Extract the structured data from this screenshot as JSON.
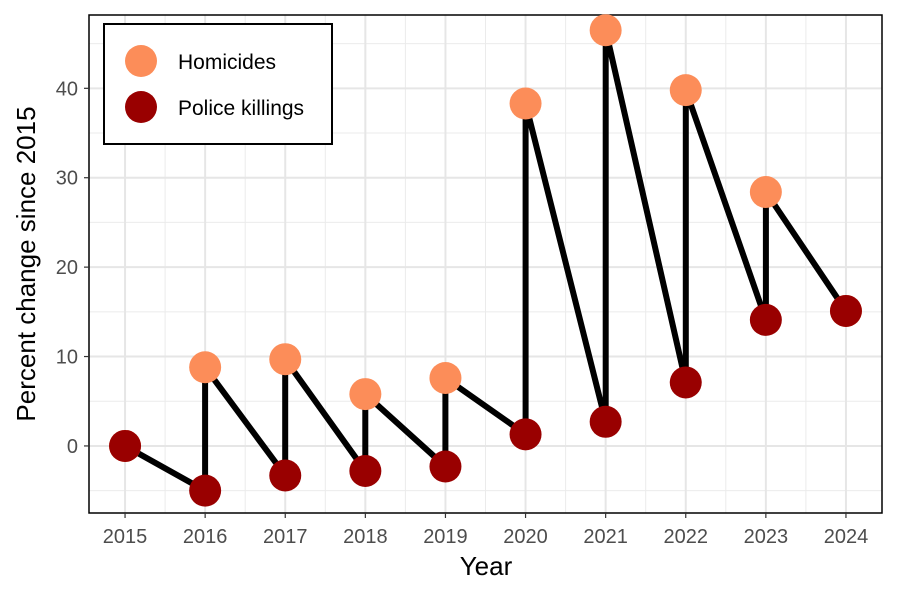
{
  "chart_data": {
    "type": "scatter",
    "xlabel": "Year",
    "ylabel": "Percent change since 2015",
    "xlim": [
      2014.55,
      2024.45
    ],
    "ylim": [
      -7.5,
      48.2
    ],
    "x_ticks": [
      "2015",
      "2016",
      "2017",
      "2018",
      "2019",
      "2020",
      "2021",
      "2022",
      "2023",
      "2024"
    ],
    "y_ticks": [
      "0",
      "10",
      "20",
      "30",
      "40"
    ],
    "grid": true,
    "legend_position": "top-left",
    "series": [
      {
        "name": "Homicides",
        "color": "#FC8D59",
        "x": [
          2015,
          2016,
          2017,
          2018,
          2019,
          2020,
          2021,
          2022,
          2023,
          2024
        ],
        "values": [
          0,
          8.8,
          9.7,
          5.8,
          7.6,
          38.3,
          46.5,
          39.8,
          28.4,
          15.1
        ]
      },
      {
        "name": "Police killings",
        "color": "#990000",
        "x": [
          2015,
          2016,
          2017,
          2018,
          2019,
          2020,
          2021,
          2022,
          2023,
          2024
        ],
        "values": [
          0,
          -5.0,
          -3.3,
          -2.8,
          -2.3,
          1.3,
          2.7,
          7.1,
          14.1,
          15.1
        ]
      }
    ],
    "connector_color": "#000000"
  }
}
